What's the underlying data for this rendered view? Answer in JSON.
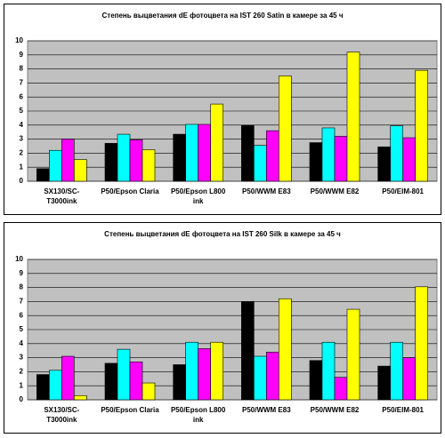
{
  "chart_data": [
    {
      "type": "bar",
      "title": "Степень выцветания dE фотоцвета на IST 260 Satin в камере за 45 ч",
      "categories": [
        "SX130/SC-T3000ink",
        "P50/Epson Claria",
        "P50/Epson L800 ink",
        "P50/WWM E83",
        "P50/WWM E82",
        "P50/EIM-801"
      ],
      "series": [
        {
          "color": "#000000",
          "values": [
            0.9,
            2.7,
            3.35,
            4.0,
            2.75,
            2.45
          ]
        },
        {
          "color": "#00ffff",
          "values": [
            2.2,
            3.35,
            4.05,
            2.55,
            3.8,
            3.95
          ]
        },
        {
          "color": "#ff00ff",
          "values": [
            3.0,
            2.95,
            4.05,
            3.6,
            3.2,
            3.1
          ]
        },
        {
          "color": "#ffff00",
          "values": [
            1.55,
            2.25,
            5.5,
            7.5,
            9.2,
            7.9
          ]
        }
      ],
      "ylim": [
        0,
        10
      ],
      "yticks": [
        0,
        1,
        2,
        3,
        4,
        5,
        6,
        7,
        8,
        9,
        10
      ],
      "grid": true
    },
    {
      "type": "bar",
      "title": "Степень выцветания dE фотоцвета на IST 260 Silk в камере за 45 ч",
      "categories": [
        "SX130/SC-T3000ink",
        "P50/Epson Claria",
        "P50/Epson L800 ink",
        "P50/WWM E83",
        "P50/WWM E82",
        "P50/EIM-801"
      ],
      "series": [
        {
          "color": "#000000",
          "values": [
            1.8,
            2.6,
            2.5,
            7.0,
            2.8,
            2.4
          ]
        },
        {
          "color": "#00ffff",
          "values": [
            2.1,
            3.6,
            4.1,
            3.1,
            4.1,
            4.1
          ]
        },
        {
          "color": "#ff00ff",
          "values": [
            3.1,
            2.7,
            3.65,
            3.4,
            1.6,
            3.0
          ]
        },
        {
          "color": "#ffff00",
          "values": [
            0.3,
            1.2,
            4.1,
            7.2,
            6.45,
            8.05
          ]
        }
      ],
      "ylim": [
        0,
        10
      ],
      "yticks": [
        0,
        1,
        2,
        3,
        4,
        5,
        6,
        7,
        8,
        9,
        10
      ],
      "grid": true
    }
  ]
}
